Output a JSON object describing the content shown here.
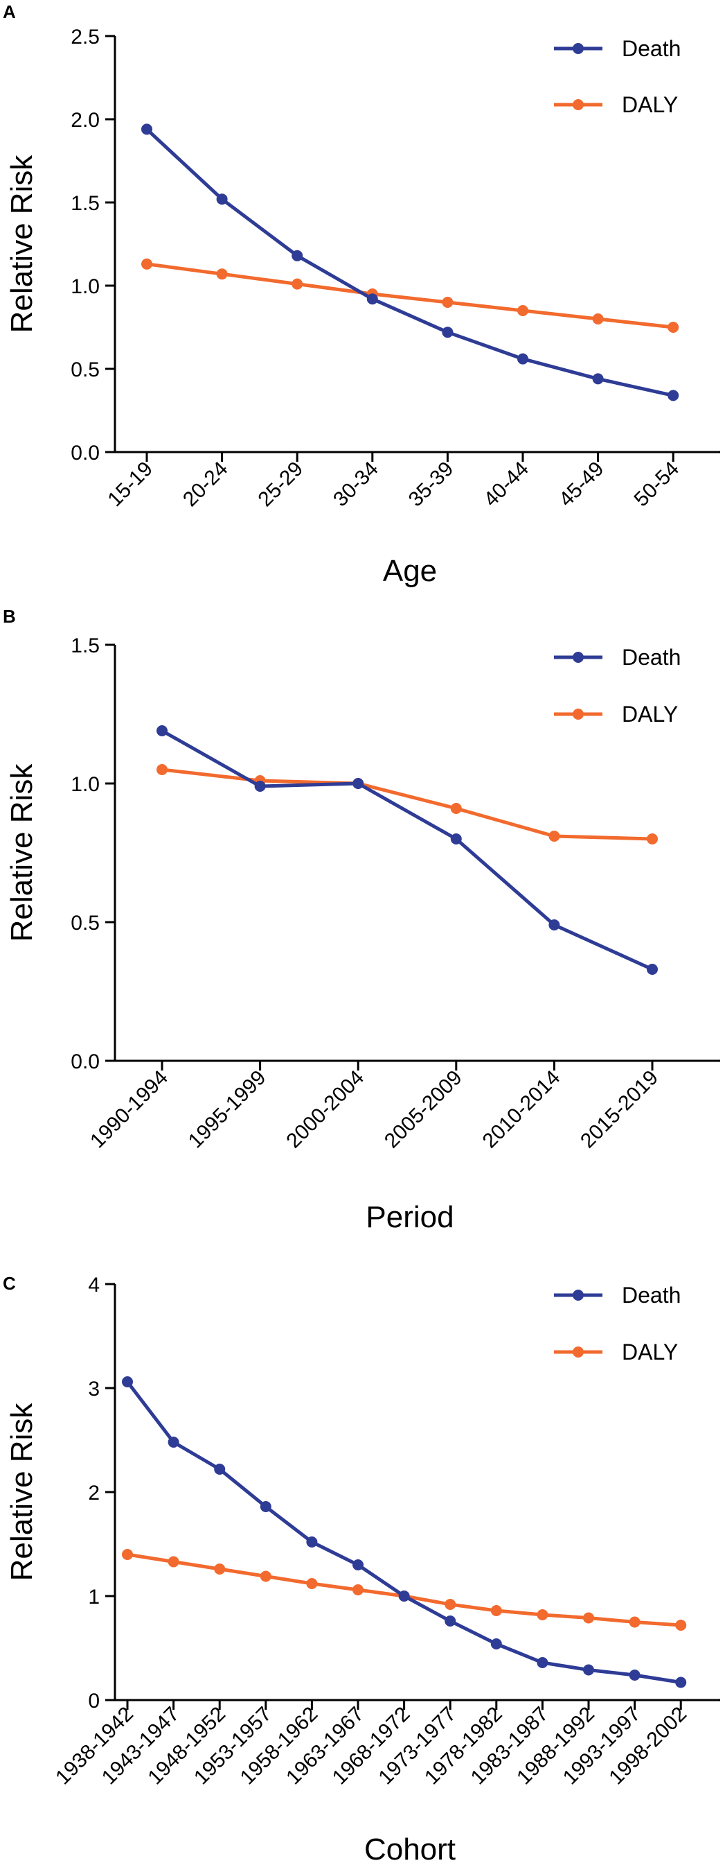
{
  "colors": {
    "death": "#2E3C96",
    "daly": "#F26A2E"
  },
  "chart_data": [
    {
      "panel_label": "A",
      "type": "line",
      "xlabel": "Age",
      "ylabel": "Relative Risk",
      "categories": [
        "15-19",
        "20-24",
        "25-29",
        "30-34",
        "35-39",
        "40-44",
        "45-49",
        "50-54"
      ],
      "ylim": [
        0,
        2.5
      ],
      "yticks": [
        "0.0",
        "0.5",
        "1.0",
        "1.5",
        "2.0",
        "2.5"
      ],
      "legend_position": "top-right",
      "series": [
        {
          "name": "Death",
          "values": [
            1.94,
            1.52,
            1.18,
            0.92,
            0.72,
            0.56,
            0.44,
            0.34
          ]
        },
        {
          "name": "DALY",
          "values": [
            1.13,
            1.07,
            1.01,
            0.95,
            0.9,
            0.85,
            0.8,
            0.75
          ]
        }
      ]
    },
    {
      "panel_label": "B",
      "type": "line",
      "xlabel": "Period",
      "ylabel": "Relative Risk",
      "categories": [
        "1990-1994",
        "1995-1999",
        "2000-2004",
        "2005-2009",
        "2010-2014",
        "2015-2019"
      ],
      "ylim": [
        0,
        1.5
      ],
      "yticks": [
        "0.0",
        "0.5",
        "1.0",
        "1.5"
      ],
      "legend_position": "top-right",
      "series": [
        {
          "name": "Death",
          "values": [
            1.19,
            0.99,
            1.0,
            0.8,
            0.49,
            0.33
          ]
        },
        {
          "name": "DALY",
          "values": [
            1.05,
            1.01,
            1.0,
            0.91,
            0.81,
            0.8
          ]
        }
      ]
    },
    {
      "panel_label": "C",
      "type": "line",
      "xlabel": "Cohort",
      "ylabel": "Relative Risk",
      "categories": [
        "1938-1942",
        "1943-1947",
        "1948-1952",
        "1953-1957",
        "1958-1962",
        "1963-1967",
        "1968-1972",
        "1973-1977",
        "1978-1982",
        "1983-1987",
        "1988-1992",
        "1993-1997",
        "1998-2002"
      ],
      "ylim": [
        0,
        4
      ],
      "yticks": [
        "0",
        "1",
        "2",
        "3",
        "4"
      ],
      "legend_position": "top-right",
      "series": [
        {
          "name": "Death",
          "values": [
            3.06,
            2.48,
            2.22,
            1.86,
            1.52,
            1.3,
            1.0,
            0.76,
            0.54,
            0.36,
            0.29,
            0.24,
            0.17
          ]
        },
        {
          "name": "DALY",
          "values": [
            1.4,
            1.33,
            1.26,
            1.19,
            1.12,
            1.06,
            1.0,
            0.92,
            0.86,
            0.82,
            0.79,
            0.75,
            0.72
          ]
        }
      ]
    }
  ]
}
